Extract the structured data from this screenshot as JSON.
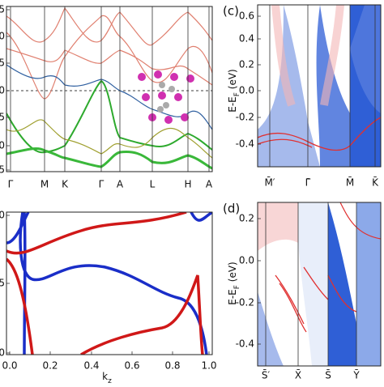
{
  "panels": [
    {
      "x_tick_labels": [
        "Γ",
        "M",
        "K",
        "Γ",
        "A",
        "L",
        "H",
        "A"
      ],
      "y_tick_labels": [
        "5",
        "0",
        "5",
        "0",
        "5",
        "0",
        "5"
      ]
    },
    {
      "x_tick_labels": [
        "0.0",
        "0.2",
        "0.4",
        "0.6",
        "0.8",
        "1.0"
      ],
      "y_tick_labels": [
        "0",
        "5",
        "0"
      ],
      "x_label": {
        "main": "k",
        "sub": "z"
      }
    },
    {
      "label": "(c)",
      "y_tick_labels": [
        "0.6",
        "0.4",
        "0.2",
        "0.0",
        "-0.2",
        "-0.4"
      ],
      "y_label": {
        "main": "E-E",
        "sub": "F",
        "tail": " (eV)"
      },
      "x_tick_labels": [
        "M̄′",
        "Γ̄",
        "M̄",
        "K̄"
      ]
    },
    {
      "label": "(d)",
      "y_tick_labels": [
        "0.2",
        "0.0",
        "-0.2",
        "-0.4"
      ],
      "y_label": {
        "main": "E-E",
        "sub": "F",
        "tail": " (eV)"
      },
      "x_tick_labels": [
        "S̄′",
        "X̄",
        "S̄",
        "Ȳ"
      ]
    }
  ]
}
